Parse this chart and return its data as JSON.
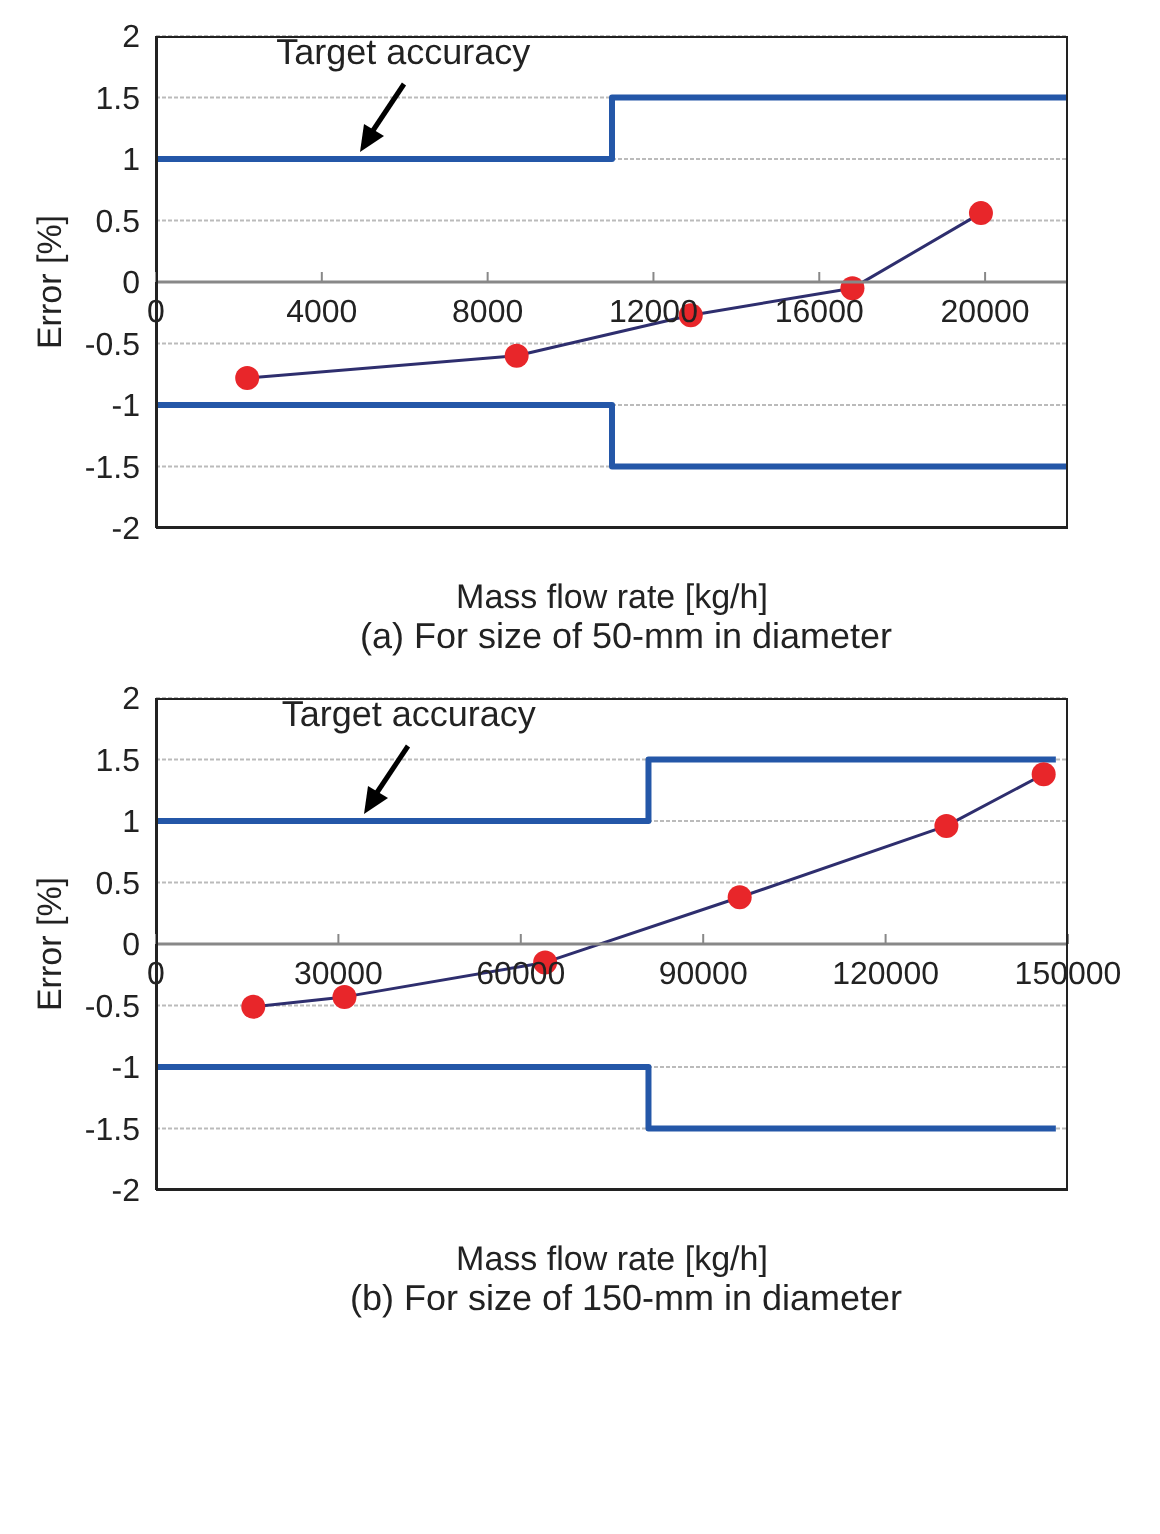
{
  "chart_data": [
    {
      "type": "line",
      "xlabel": "Mass flow rate [kg/h]",
      "ylabel": "Error [%]",
      "xlim": [
        0,
        22000
      ],
      "xticks": [
        0,
        4000,
        8000,
        12000,
        16000,
        20000
      ],
      "ylim": [
        -2,
        2
      ],
      "yticks": [
        -2,
        -1.5,
        -1,
        -0.5,
        0,
        0.5,
        1,
        1.5,
        2
      ],
      "grid": "y",
      "series": [
        {
          "type": "step",
          "color": "#2457a8",
          "x": [
            0,
            11000,
            22000
          ],
          "values": [
            1,
            1.5,
            1.5
          ]
        },
        {
          "type": "step",
          "color": "#2457a8",
          "x": [
            0,
            11000,
            22000
          ],
          "values": [
            -1,
            -1.5,
            -1.5
          ]
        },
        {
          "type": "line",
          "color": "#2e2e6e",
          "marker": "circle",
          "colors": [
            "#e8262a",
            "#e8262a",
            "#e8262a",
            "#e8262a",
            "#e8262a"
          ],
          "x": [
            2200,
            8700,
            12900,
            16800,
            19900
          ],
          "values": [
            -0.78,
            -0.6,
            -0.27,
            -0.05,
            0.56
          ]
        }
      ],
      "annotations": [
        {
          "text": "Target accuracy",
          "x": 5000,
          "y": 1
        },
        "(a) For size of 50-mm in diameter"
      ]
    },
    {
      "type": "line",
      "xlabel": "Mass flow rate [kg/h]",
      "ylabel": "Error [%]",
      "xlim": [
        0,
        150000
      ],
      "xticks": [
        0,
        30000,
        60000,
        90000,
        120000,
        150000
      ],
      "ylim": [
        -2,
        2
      ],
      "yticks": [
        -2,
        -1.5,
        -1,
        -0.5,
        0,
        0.5,
        1,
        1.5,
        2
      ],
      "grid": "y",
      "series": [
        {
          "type": "step",
          "color": "#2457a8",
          "x": [
            0,
            81000,
            148000
          ],
          "values": [
            1,
            1.5,
            1.5
          ]
        },
        {
          "type": "step",
          "color": "#2457a8",
          "x": [
            0,
            81000,
            148000
          ],
          "values": [
            -1,
            -1.5,
            -1.5
          ]
        },
        {
          "type": "line",
          "color": "#2e2e6e",
          "marker": "circle",
          "colors": [
            "#e8262a",
            "#e8262a",
            "#e8262a",
            "#e8262a",
            "#e8262a",
            "#e8262a"
          ],
          "x": [
            16000,
            31000,
            64000,
            96000,
            130000,
            146000
          ],
          "values": [
            -0.51,
            -0.43,
            -0.15,
            0.38,
            0.96,
            1.38
          ]
        }
      ],
      "annotations": [
        {
          "text": "Target accuracy",
          "x": 35000,
          "y": 1
        },
        "(b) For size of 150-mm in diameter"
      ]
    }
  ]
}
